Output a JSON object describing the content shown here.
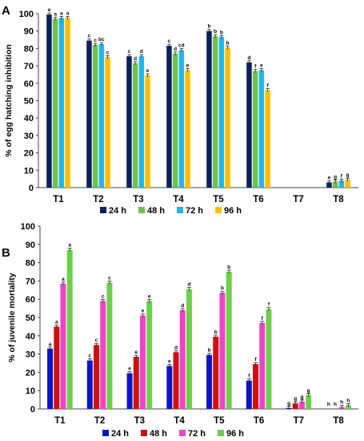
{
  "chart_data": [
    {
      "type": "bar",
      "panel": "A",
      "ylabel": "% of egg hatching inhibition",
      "ylim": [
        0,
        100
      ],
      "yticks": [
        0,
        10,
        20,
        30,
        40,
        50,
        60,
        70,
        80,
        90,
        100
      ],
      "categories": [
        "T1",
        "T2",
        "T3",
        "T4",
        "T5",
        "T6",
        "T7",
        "T8"
      ],
      "series": [
        {
          "name": "24 h",
          "color": "#0d1f5c",
          "values": [
            99.5,
            84.5,
            75.5,
            81.5,
            90,
            72,
            0,
            3
          ],
          "letters": [
            "a",
            "c",
            "c",
            "c",
            "b",
            "d",
            "",
            "e"
          ]
        },
        {
          "name": "48 h",
          "color": "#6cc24a",
          "values": [
            97,
            82,
            71.5,
            77,
            87,
            67,
            0,
            3.5
          ],
          "letters": [
            "a",
            "c",
            "d",
            "d",
            "b",
            "f",
            "",
            "g"
          ]
        },
        {
          "name": "72 h",
          "color": "#1fb6ee",
          "values": [
            97.5,
            82.5,
            75.5,
            79,
            86.5,
            67.5,
            0,
            4
          ],
          "letters": [
            "a",
            "bc",
            "d",
            "cd",
            "b",
            "e",
            "",
            "f"
          ]
        },
        {
          "name": "96 h",
          "color": "#ffc000",
          "values": [
            97.5,
            75,
            64.5,
            67.5,
            80.5,
            56,
            0,
            4.5
          ],
          "letters": [
            "a",
            "c",
            "e",
            "e",
            "b",
            "f",
            "",
            "g"
          ]
        }
      ],
      "legend": "bottom"
    },
    {
      "type": "bar",
      "panel": "B",
      "ylabel": "% of juvenile mortality",
      "ylim": [
        0,
        100
      ],
      "yticks": [
        0,
        10,
        20,
        30,
        40,
        50,
        60,
        70,
        80,
        90,
        100
      ],
      "categories": [
        "T1",
        "T2",
        "T3",
        "T4",
        "T5",
        "T6",
        "T7",
        "T8"
      ],
      "series": [
        {
          "name": "24 h",
          "color": "#0a14c8",
          "values": [
            33,
            26.5,
            19.5,
            23.5,
            29.5,
            15.5,
            0.5,
            0
          ],
          "letters": [
            "a",
            "c",
            "e",
            "e",
            "b",
            "f",
            "g",
            "h"
          ]
        },
        {
          "name": "48 h",
          "color": "#d10f0f",
          "values": [
            45,
            35,
            28.5,
            31,
            39.5,
            24.5,
            3,
            0
          ],
          "letters": [
            "a",
            "c",
            "e",
            "d",
            "b",
            "f",
            "g",
            "h"
          ]
        },
        {
          "name": "72 h",
          "color": "#ee44c8",
          "values": [
            68.5,
            59,
            51,
            54,
            63.5,
            47,
            4,
            1
          ],
          "letters": [
            "a",
            "c",
            "e",
            "d",
            "b",
            "f",
            "g",
            "h"
          ]
        },
        {
          "name": "96 h",
          "color": "#6cd04a",
          "values": [
            87,
            69,
            59,
            65.5,
            75,
            54.5,
            7.5,
            2
          ],
          "letters": [
            "a",
            "c",
            "e",
            "d",
            "b",
            "f",
            "g",
            "h"
          ]
        }
      ],
      "legend": "bottom"
    }
  ]
}
